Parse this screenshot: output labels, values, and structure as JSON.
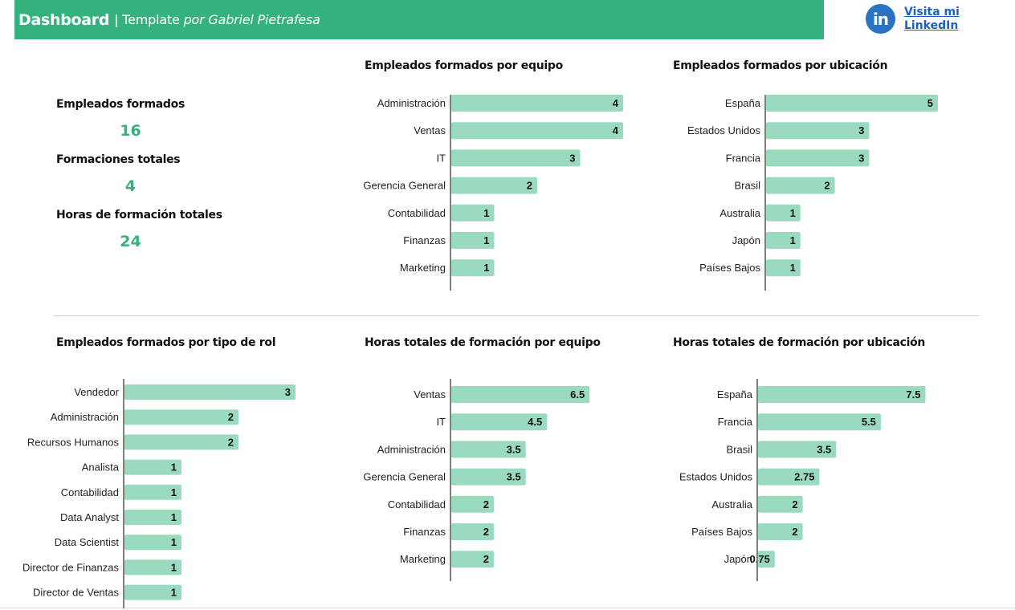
{
  "header": {
    "title": "Dashboard",
    "separator": "|",
    "subtitle_plain": "Template",
    "subtitle_italic": "por Gabriel Pietrafesa",
    "bg_color": "#34b27d"
  },
  "linkedin": {
    "icon": "linkedin-icon",
    "icon_text": "in",
    "link_text": "Visita mi LinkedIn"
  },
  "kpis": [
    {
      "label": "Empleados formados",
      "value": "16"
    },
    {
      "label": "Formaciones totales",
      "value": "4"
    },
    {
      "label": "Horas de formación totales",
      "value": "24"
    }
  ],
  "colors": {
    "bar": "#9adbbf",
    "accent": "#34b27d",
    "axis": "#555555"
  },
  "chart_data": [
    {
      "type": "bar",
      "orientation": "horizontal",
      "title": "Empleados formados por equipo",
      "categories": [
        "Administración",
        "Ventas",
        "IT",
        "Gerencia General",
        "Contabilidad",
        "Finanzas",
        "Marketing"
      ],
      "values": [
        4,
        4,
        3,
        2,
        1,
        1,
        1
      ],
      "data_labels": [
        "4",
        "4",
        "3",
        "2",
        "1",
        "1",
        "1"
      ],
      "xlabel": "",
      "ylabel": "",
      "grid": false
    },
    {
      "type": "bar",
      "orientation": "horizontal",
      "title": "Empleados formados por ubicación",
      "categories": [
        "España",
        "Estados Unidos",
        "Francia",
        "Brasil",
        "Australia",
        "Japón",
        "Países Bajos"
      ],
      "values": [
        5,
        3,
        3,
        2,
        1,
        1,
        1
      ],
      "data_labels": [
        "5",
        "3",
        "3",
        "2",
        "1",
        "1",
        "1"
      ],
      "xlabel": "",
      "ylabel": "",
      "grid": false
    },
    {
      "type": "bar",
      "orientation": "horizontal",
      "title": "Empleados formados por tipo de rol",
      "categories": [
        "Vendedor",
        "Administración",
        "Recursos Humanos",
        "Analista",
        "Contabilidad",
        "Data Analyst",
        "Data Scientist",
        "Director de Finanzas",
        "Director de Ventas"
      ],
      "values": [
        3,
        2,
        2,
        1,
        1,
        1,
        1,
        1,
        1
      ],
      "data_labels": [
        "3",
        "2",
        "2",
        "1",
        "1",
        "1",
        "1",
        "1",
        "1"
      ],
      "xlabel": "",
      "ylabel": "",
      "grid": false
    },
    {
      "type": "bar",
      "orientation": "horizontal",
      "title": "Horas totales de formación por equipo",
      "categories": [
        "Ventas",
        "IT",
        "Administración",
        "Gerencia General",
        "Contabilidad",
        "Finanzas",
        "Marketing"
      ],
      "values": [
        6.5,
        4.5,
        3.5,
        3.5,
        2,
        2,
        2
      ],
      "data_labels": [
        "6.5",
        "4.5",
        "3.5",
        "3.5",
        "2",
        "2",
        "2"
      ],
      "xlabel": "",
      "ylabel": "",
      "grid": false
    },
    {
      "type": "bar",
      "orientation": "horizontal",
      "title": "Horas totales de formación por ubicación",
      "categories": [
        "España",
        "Francia",
        "Brasil",
        "Estados Unidos",
        "Australia",
        "Países Bajos",
        "Japón"
      ],
      "values": [
        7.5,
        5.5,
        3.5,
        2.75,
        2,
        2,
        0.75
      ],
      "data_labels": [
        "7.5",
        "5.5",
        "3.5",
        "2.75",
        "2",
        "2",
        "0.75"
      ],
      "xlabel": "",
      "ylabel": "",
      "grid": false
    }
  ]
}
